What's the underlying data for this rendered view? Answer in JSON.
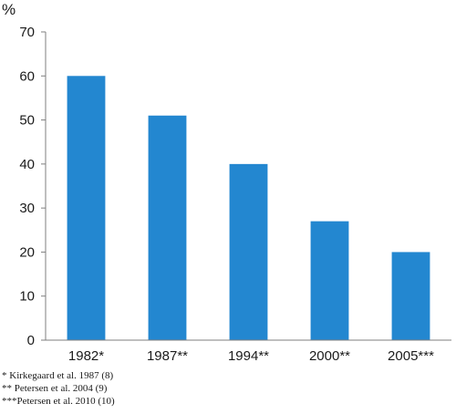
{
  "chart_data": {
    "type": "bar",
    "ylabel": "%",
    "categories": [
      "1982*",
      "1987**",
      "1994**",
      "2000**",
      "2005***"
    ],
    "values": [
      60,
      51,
      40,
      27,
      20
    ],
    "ylim": [
      0,
      70
    ],
    "yticks": [
      0,
      10,
      20,
      30,
      40,
      50,
      60,
      70
    ],
    "grid": false,
    "bar_color": "#2387d0"
  },
  "footnotes": [
    "* Kirkegaard et al. 1987 (8)",
    "** Petersen et al. 2004 (9)",
    "***Petersen et al. 2010 (10)"
  ]
}
